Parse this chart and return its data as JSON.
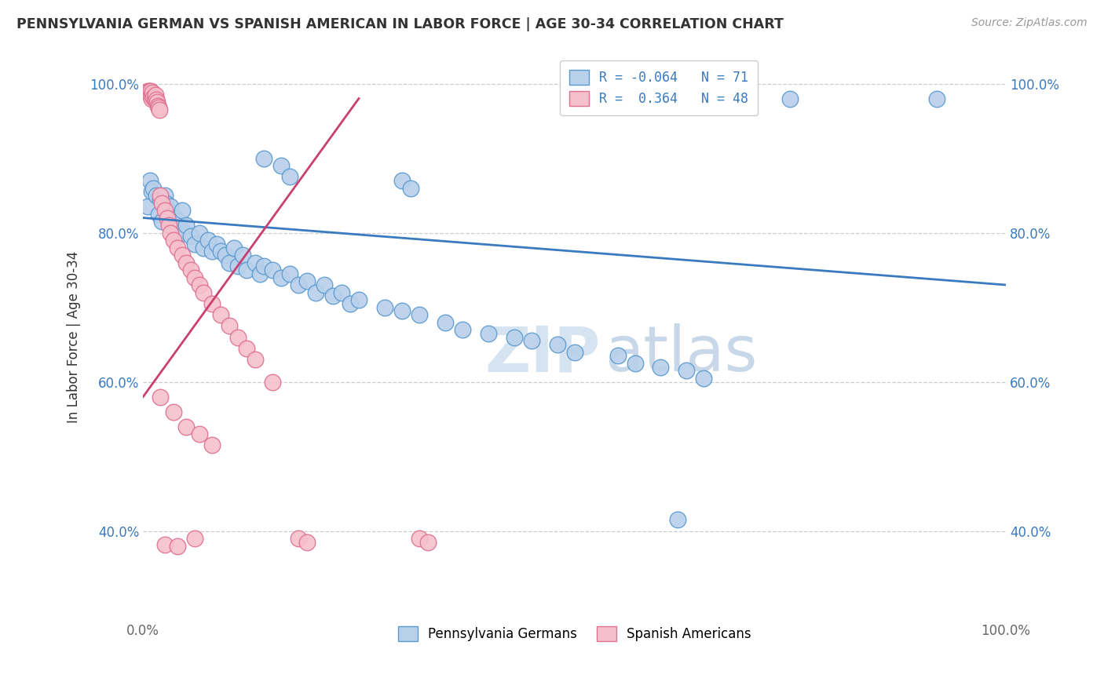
{
  "title": "PENNSYLVANIA GERMAN VS SPANISH AMERICAN IN LABOR FORCE | AGE 30-34 CORRELATION CHART",
  "source": "Source: ZipAtlas.com",
  "ylabel": "In Labor Force | Age 30-34",
  "blue_line_color": "#3a7abf",
  "pink_line_color": "#c94070",
  "blue_scatter_facecolor": "#b8d0ea",
  "blue_scatter_edgecolor": "#5a9ad0",
  "pink_scatter_facecolor": "#f5c0cc",
  "pink_scatter_edgecolor": "#e07090",
  "watermark_color": "#d5e4f0",
  "grid_color": "#cccccc",
  "background_color": "#ffffff",
  "blue_points": [
    [
      0.005,
      0.835
    ],
    [
      0.008,
      0.87
    ],
    [
      0.01,
      0.855
    ],
    [
      0.012,
      0.86
    ],
    [
      0.015,
      0.85
    ],
    [
      0.018,
      0.825
    ],
    [
      0.02,
      0.845
    ],
    [
      0.022,
      0.815
    ],
    [
      0.025,
      0.85
    ],
    [
      0.026,
      0.84
    ],
    [
      0.028,
      0.83
    ],
    [
      0.03,
      0.82
    ],
    [
      0.032,
      0.835
    ],
    [
      0.035,
      0.81
    ],
    [
      0.038,
      0.82
    ],
    [
      0.04,
      0.8
    ],
    [
      0.042,
      0.815
    ],
    [
      0.045,
      0.83
    ],
    [
      0.048,
      0.8
    ],
    [
      0.05,
      0.81
    ],
    [
      0.055,
      0.795
    ],
    [
      0.06,
      0.785
    ],
    [
      0.065,
      0.8
    ],
    [
      0.07,
      0.78
    ],
    [
      0.075,
      0.79
    ],
    [
      0.08,
      0.775
    ],
    [
      0.085,
      0.785
    ],
    [
      0.09,
      0.775
    ],
    [
      0.095,
      0.77
    ],
    [
      0.1,
      0.76
    ],
    [
      0.105,
      0.78
    ],
    [
      0.11,
      0.755
    ],
    [
      0.115,
      0.77
    ],
    [
      0.12,
      0.75
    ],
    [
      0.13,
      0.76
    ],
    [
      0.135,
      0.745
    ],
    [
      0.14,
      0.755
    ],
    [
      0.15,
      0.75
    ],
    [
      0.16,
      0.74
    ],
    [
      0.17,
      0.745
    ],
    [
      0.18,
      0.73
    ],
    [
      0.19,
      0.735
    ],
    [
      0.2,
      0.72
    ],
    [
      0.21,
      0.73
    ],
    [
      0.22,
      0.715
    ],
    [
      0.23,
      0.72
    ],
    [
      0.24,
      0.705
    ],
    [
      0.25,
      0.71
    ],
    [
      0.28,
      0.7
    ],
    [
      0.3,
      0.695
    ],
    [
      0.32,
      0.69
    ],
    [
      0.35,
      0.68
    ],
    [
      0.37,
      0.67
    ],
    [
      0.4,
      0.665
    ],
    [
      0.43,
      0.66
    ],
    [
      0.45,
      0.655
    ],
    [
      0.48,
      0.65
    ],
    [
      0.5,
      0.64
    ],
    [
      0.55,
      0.635
    ],
    [
      0.57,
      0.625
    ],
    [
      0.6,
      0.62
    ],
    [
      0.63,
      0.615
    ],
    [
      0.65,
      0.605
    ],
    [
      0.14,
      0.9
    ],
    [
      0.16,
      0.89
    ],
    [
      0.17,
      0.875
    ],
    [
      0.3,
      0.87
    ],
    [
      0.31,
      0.86
    ],
    [
      0.75,
      0.98
    ],
    [
      0.92,
      0.98
    ],
    [
      0.62,
      0.415
    ]
  ],
  "pink_points": [
    [
      0.005,
      0.99
    ],
    [
      0.007,
      0.99
    ],
    [
      0.008,
      0.985
    ],
    [
      0.009,
      0.99
    ],
    [
      0.01,
      0.985
    ],
    [
      0.01,
      0.98
    ],
    [
      0.011,
      0.988
    ],
    [
      0.012,
      0.982
    ],
    [
      0.013,
      0.98
    ],
    [
      0.014,
      0.985
    ],
    [
      0.015,
      0.978
    ],
    [
      0.016,
      0.975
    ],
    [
      0.017,
      0.97
    ],
    [
      0.018,
      0.968
    ],
    [
      0.019,
      0.965
    ],
    [
      0.02,
      0.85
    ],
    [
      0.022,
      0.84
    ],
    [
      0.025,
      0.83
    ],
    [
      0.028,
      0.82
    ],
    [
      0.03,
      0.81
    ],
    [
      0.032,
      0.8
    ],
    [
      0.035,
      0.79
    ],
    [
      0.04,
      0.78
    ],
    [
      0.045,
      0.77
    ],
    [
      0.05,
      0.76
    ],
    [
      0.055,
      0.75
    ],
    [
      0.06,
      0.74
    ],
    [
      0.065,
      0.73
    ],
    [
      0.07,
      0.72
    ],
    [
      0.08,
      0.705
    ],
    [
      0.09,
      0.69
    ],
    [
      0.1,
      0.675
    ],
    [
      0.11,
      0.66
    ],
    [
      0.12,
      0.645
    ],
    [
      0.13,
      0.63
    ],
    [
      0.15,
      0.6
    ],
    [
      0.02,
      0.58
    ],
    [
      0.035,
      0.56
    ],
    [
      0.05,
      0.54
    ],
    [
      0.065,
      0.53
    ],
    [
      0.08,
      0.515
    ],
    [
      0.025,
      0.382
    ],
    [
      0.04,
      0.38
    ],
    [
      0.06,
      0.39
    ],
    [
      0.18,
      0.39
    ],
    [
      0.19,
      0.385
    ],
    [
      0.32,
      0.39
    ],
    [
      0.33,
      0.385
    ]
  ],
  "blue_line_x": [
    0.0,
    1.0
  ],
  "blue_line_y": [
    0.82,
    0.73
  ],
  "pink_line_x": [
    0.0,
    0.25
  ],
  "pink_line_y": [
    0.58,
    0.98
  ],
  "xlim": [
    0.0,
    1.0
  ],
  "ylim": [
    0.28,
    1.04
  ],
  "yticks": [
    0.4,
    0.6,
    0.8,
    1.0
  ],
  "ytick_labels": [
    "40.0%",
    "60.0%",
    "80.0%",
    "100.0%"
  ],
  "xtick_left_label": "0.0%",
  "xtick_right_label": "100.0%"
}
